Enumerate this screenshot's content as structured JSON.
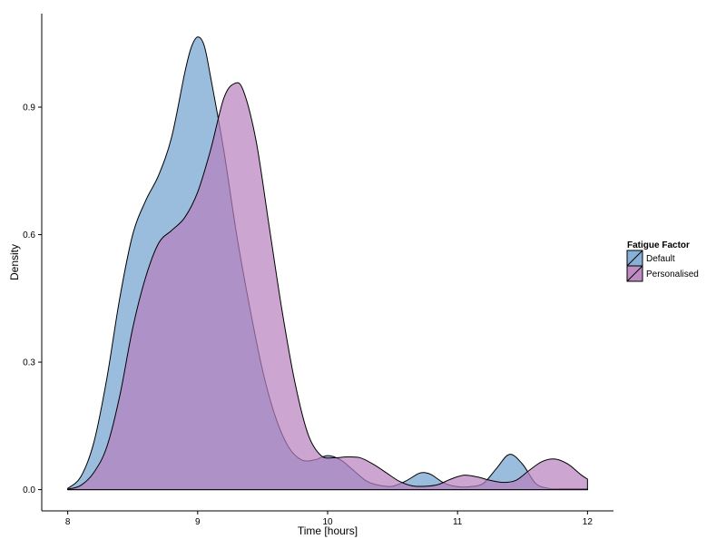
{
  "chart_data": {
    "type": "area",
    "title": "",
    "xlabel": "Time [hours]",
    "ylabel": "Density",
    "xlim": [
      7.8,
      12.2
    ],
    "ylim": [
      -0.05,
      1.12
    ],
    "x_ticks": [
      8,
      9,
      10,
      11,
      12
    ],
    "x_tick_labels": [
      "8",
      "9",
      "10",
      "11",
      "12"
    ],
    "y_ticks": [
      0.0,
      0.3,
      0.6,
      0.9
    ],
    "y_tick_labels": [
      "0.0",
      "0.3",
      "0.6",
      "0.9"
    ],
    "grid": false,
    "legend": {
      "title": "Fatigue Factor",
      "placement": "right"
    },
    "series": [
      {
        "name": "Default",
        "color": "#7aa7d1",
        "opacity": 0.75,
        "points": [
          [
            8.0,
            0.003
          ],
          [
            8.1,
            0.03
          ],
          [
            8.2,
            0.11
          ],
          [
            8.3,
            0.26
          ],
          [
            8.4,
            0.45
          ],
          [
            8.5,
            0.6
          ],
          [
            8.6,
            0.68
          ],
          [
            8.7,
            0.74
          ],
          [
            8.8,
            0.83
          ],
          [
            8.9,
            0.98
          ],
          [
            8.95,
            1.04
          ],
          [
            9.0,
            1.065
          ],
          [
            9.05,
            1.045
          ],
          [
            9.1,
            0.97
          ],
          [
            9.2,
            0.8
          ],
          [
            9.3,
            0.6
          ],
          [
            9.4,
            0.43
          ],
          [
            9.5,
            0.28
          ],
          [
            9.6,
            0.17
          ],
          [
            9.7,
            0.1
          ],
          [
            9.8,
            0.07
          ],
          [
            9.9,
            0.07
          ],
          [
            10.0,
            0.08
          ],
          [
            10.1,
            0.07
          ],
          [
            10.2,
            0.045
          ],
          [
            10.3,
            0.02
          ],
          [
            10.4,
            0.01
          ],
          [
            10.5,
            0.008
          ],
          [
            10.6,
            0.02
          ],
          [
            10.7,
            0.038
          ],
          [
            10.75,
            0.04
          ],
          [
            10.8,
            0.035
          ],
          [
            10.9,
            0.015
          ],
          [
            11.0,
            0.007
          ],
          [
            11.1,
            0.007
          ],
          [
            11.2,
            0.015
          ],
          [
            11.3,
            0.05
          ],
          [
            11.4,
            0.083
          ],
          [
            11.5,
            0.06
          ],
          [
            11.6,
            0.015
          ],
          [
            11.7,
            0.003
          ],
          [
            11.8,
            0.002
          ],
          [
            11.9,
            0.002
          ],
          [
            12.0,
            0.002
          ]
        ]
      },
      {
        "name": "Personalised",
        "color": "#b77fbd",
        "opacity": 0.7,
        "points": [
          [
            8.0,
            0.001
          ],
          [
            8.1,
            0.01
          ],
          [
            8.2,
            0.04
          ],
          [
            8.3,
            0.1
          ],
          [
            8.4,
            0.22
          ],
          [
            8.5,
            0.38
          ],
          [
            8.6,
            0.5
          ],
          [
            8.7,
            0.58
          ],
          [
            8.8,
            0.61
          ],
          [
            8.9,
            0.64
          ],
          [
            9.0,
            0.7
          ],
          [
            9.1,
            0.8
          ],
          [
            9.2,
            0.92
          ],
          [
            9.28,
            0.955
          ],
          [
            9.35,
            0.94
          ],
          [
            9.45,
            0.82
          ],
          [
            9.55,
            0.62
          ],
          [
            9.65,
            0.42
          ],
          [
            9.75,
            0.25
          ],
          [
            9.85,
            0.13
          ],
          [
            9.95,
            0.08
          ],
          [
            10.05,
            0.075
          ],
          [
            10.15,
            0.077
          ],
          [
            10.25,
            0.075
          ],
          [
            10.35,
            0.06
          ],
          [
            10.45,
            0.04
          ],
          [
            10.55,
            0.02
          ],
          [
            10.65,
            0.009
          ],
          [
            10.75,
            0.008
          ],
          [
            10.85,
            0.012
          ],
          [
            10.95,
            0.025
          ],
          [
            11.05,
            0.034
          ],
          [
            11.15,
            0.03
          ],
          [
            11.25,
            0.022
          ],
          [
            11.35,
            0.017
          ],
          [
            11.45,
            0.022
          ],
          [
            11.55,
            0.045
          ],
          [
            11.65,
            0.066
          ],
          [
            11.75,
            0.072
          ],
          [
            11.85,
            0.06
          ],
          [
            11.95,
            0.035
          ],
          [
            12.0,
            0.025
          ]
        ]
      }
    ]
  }
}
